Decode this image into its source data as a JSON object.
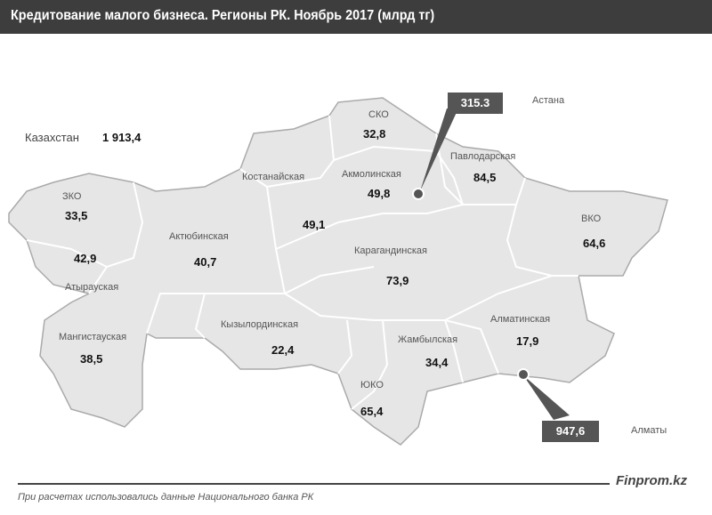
{
  "title": "Кредитование малого бизнеса. Регионы РК. Ноябрь 2017 (млрд тг)",
  "total": {
    "label": "Казахстан",
    "value": "1 913,4"
  },
  "regions": [
    {
      "name": "СКО",
      "value": "32,8"
    },
    {
      "name": "Акмолинская",
      "value": "49,8"
    },
    {
      "name": "Павлодарская",
      "value": "84,5"
    },
    {
      "name": "Костанайская",
      "value": "49,1"
    },
    {
      "name": "ЗКО",
      "value": "33,5"
    },
    {
      "name": "Атырауская",
      "value": "42,9"
    },
    {
      "name": "Актюбинская",
      "value": "40,7"
    },
    {
      "name": "ВКО",
      "value": "64,6"
    },
    {
      "name": "Карагандинская",
      "value": "73,9"
    },
    {
      "name": "Мангистауская",
      "value": "38,5"
    },
    {
      "name": "Кызылординская",
      "value": "22,4"
    },
    {
      "name": "Жамбылская",
      "value": "34,4"
    },
    {
      "name": "Алматинская",
      "value": "17,9"
    },
    {
      "name": "ЮКО",
      "value": "65,4"
    }
  ],
  "cities": [
    {
      "name": "Астана",
      "value": "315.3"
    },
    {
      "name": "Алматы",
      "value": "947,6"
    }
  ],
  "footer": {
    "brand": "Finprom.kz",
    "note": "При расчетах использовались данные Национального  банка РК"
  },
  "colors": {
    "header": "#3d3d3d",
    "region_fill": "#e6e6e6",
    "border": "#999999",
    "callout": "#555555"
  }
}
